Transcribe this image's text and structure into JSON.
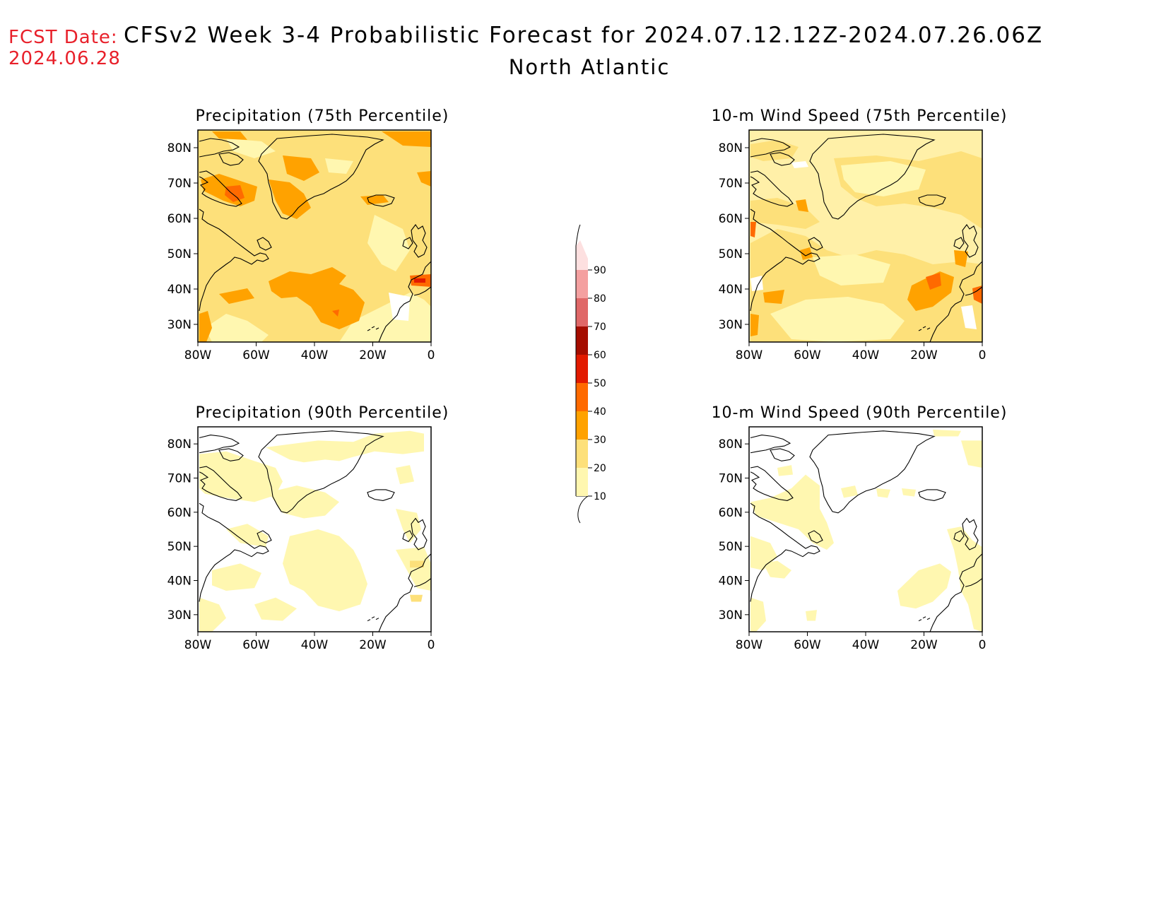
{
  "header": {
    "fcst_label": "FCST Date:",
    "fcst_date": "2024.06.28",
    "title": "CFSv2 Week 3-4 Probabilistic Forecast for 2024.07.12.12Z-2024.07.26.06Z",
    "region": "North Atlantic"
  },
  "axes": {
    "lat_labels": [
      "80N",
      "70N",
      "60N",
      "50N",
      "40N",
      "30N"
    ],
    "lat_values": [
      80,
      70,
      60,
      50,
      40,
      30
    ],
    "lon_labels": [
      "80W",
      "60W",
      "40W",
      "20W",
      "0"
    ],
    "lon_values": [
      -80,
      -60,
      -40,
      -20,
      0
    ],
    "lat_range": [
      25,
      85
    ],
    "lon_range": [
      -80,
      0
    ]
  },
  "panels": [
    {
      "id": "precip75",
      "title": "Precipitation (75th Percentile)"
    },
    {
      "id": "wind75",
      "title": "10-m Wind Speed (75th Percentile)"
    },
    {
      "id": "precip90",
      "title": "Precipitation (90th Percentile)"
    },
    {
      "id": "wind90",
      "title": "10-m Wind Speed (90th Percentile)"
    }
  ],
  "colorbar": {
    "levels": [
      "10",
      "20",
      "30",
      "40",
      "50",
      "60",
      "70",
      "80",
      "90"
    ],
    "colors": [
      "#fff7b0",
      "#fde07a",
      "#ffa200",
      "#ff6a00",
      "#e21a00",
      "#a50d00",
      "#e06868",
      "#f4a0a0",
      "#fde0e0"
    ]
  },
  "colors": {
    "title": "#000000",
    "fcst": "#e8202a",
    "base_precip75": "#fde07a",
    "base_wind75": "#fff0a8",
    "base_90": "#ffffff"
  }
}
